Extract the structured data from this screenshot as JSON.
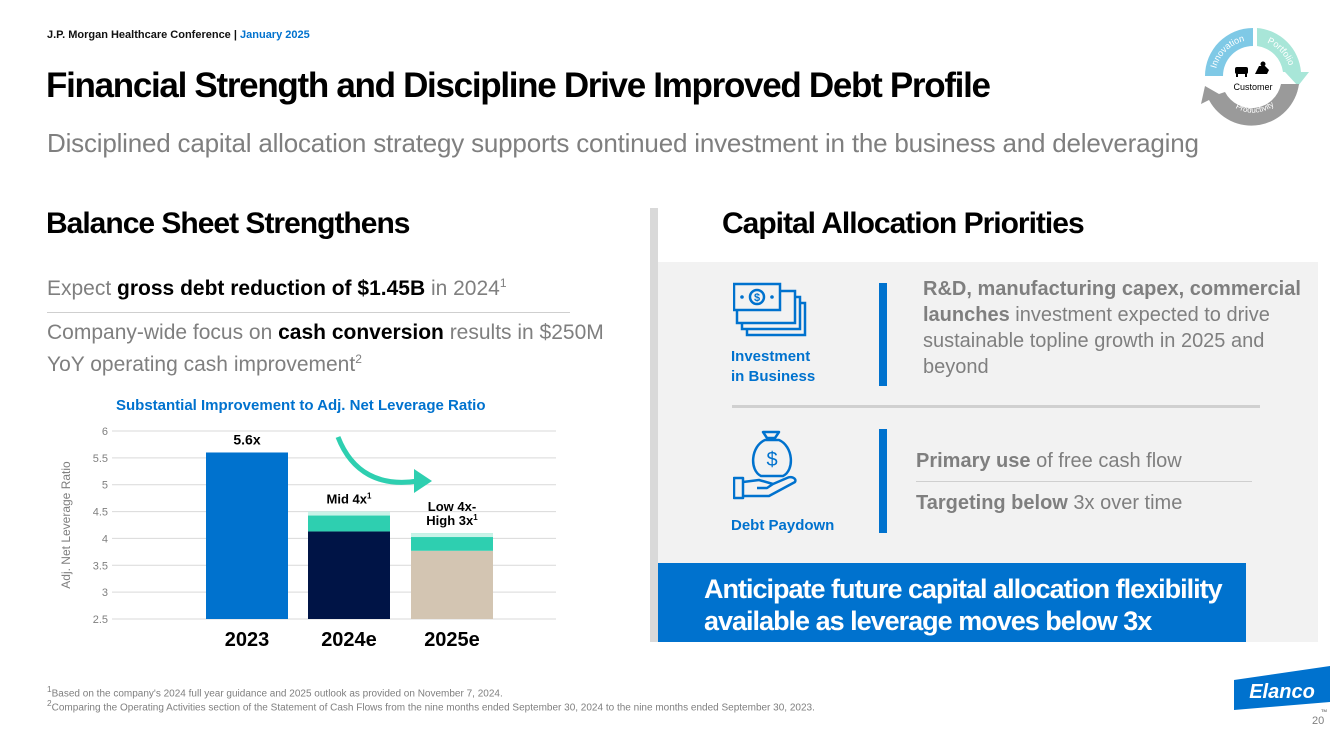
{
  "header": {
    "conference": "J.P. Morgan Healthcare Conference |",
    "date": "January 2025",
    "title": "Financial Strength and Discipline Drive Improved Debt Profile",
    "subtitle": "Disciplined capital allocation strategy supports continued investment in the business and deleveraging"
  },
  "cycle_graphic": {
    "center_label": "Customer",
    "segments": [
      "Innovation",
      "Portfolio",
      "Productivity"
    ],
    "colors": [
      "#7fc9e6",
      "#a8e6d8",
      "#9a9a9a"
    ]
  },
  "left": {
    "heading": "Balance Sheet Strengthens",
    "line1": {
      "prefix": "Expect ",
      "bold": "gross debt reduction of $1.45B",
      "suffix": " in 2024",
      "sup": "1"
    },
    "line2": {
      "prefix": "Company-wide focus on ",
      "bold": "cash conversion",
      "suffix": " results in $250M YoY operating cash improvement",
      "sup": "2"
    },
    "chart_title": "Substantial Improvement to Adj. Net Leverage Ratio"
  },
  "chart_data": {
    "type": "bar",
    "title": "Substantial Improvement to Adj. Net Leverage Ratio",
    "ylabel": "Adj. Net Leverage Ratio",
    "xlabel": "",
    "ylim": [
      2.5,
      6
    ],
    "yticks": [
      "2.5",
      "3",
      "3.5",
      "4",
      "4.5",
      "5",
      "5.5",
      "6"
    ],
    "categories": [
      "2023",
      "2024e",
      "2025e"
    ],
    "values": [
      5.6,
      4.5,
      4.1
    ],
    "bars": [
      {
        "category": "2023",
        "base": 5.6,
        "range_top": 5.6,
        "label": "5.6x",
        "sup": "",
        "color": "#0072ce"
      },
      {
        "category": "2024e",
        "base": 4.13,
        "range_top": 4.5,
        "label": "Mid 4x",
        "sup": "1",
        "color": "#001446"
      },
      {
        "category": "2025e",
        "base": 3.77,
        "range_top": 4.1,
        "label": "Low 4x-High 3x",
        "label_lines": [
          "Low 4x-",
          "High 3x"
        ],
        "sup": "1",
        "color": "#d3c5b2"
      }
    ],
    "range_color": "#2ecfb0",
    "grid": true
  },
  "right": {
    "heading": "Capital Allocation Priorities",
    "investment": {
      "icon": "money-stack-icon",
      "label_line1": "Investment",
      "label_line2": "in Business",
      "text_bold": "R&D, manufacturing capex, commercial launches",
      "text_rest": " investment expected to drive sustainable topline growth in 2025 and beyond"
    },
    "debt": {
      "icon": "money-bag-hand-icon",
      "label": "Debt Paydown",
      "item1_bold": "Primary use",
      "item1_rest": " of free cash flow",
      "item2_bold": "Targeting below",
      "item2_rest": " 3x over time"
    },
    "banner": "Anticipate future capital allocation flexibility available as leverage moves below 3x"
  },
  "footnotes": {
    "fn1_sup": "1",
    "fn1": "Based on the company's 2024 full year guidance and 2025 outlook as provided on November 7, 2024.",
    "fn2_sup": "2",
    "fn2": "Comparing the Operating Activities section of the Statement of Cash Flows from the nine months ended September 30, 2024 to the nine months ended September 30, 2023."
  },
  "logo": {
    "text": "Elanco",
    "tm": "TM",
    "color": "#0072ce"
  },
  "page_number": "20",
  "colors": {
    "accent": "#0072ce",
    "navy": "#001446",
    "teal": "#2ecfb0",
    "tan": "#d3c5b2",
    "grey_text": "#7f7f7f"
  }
}
